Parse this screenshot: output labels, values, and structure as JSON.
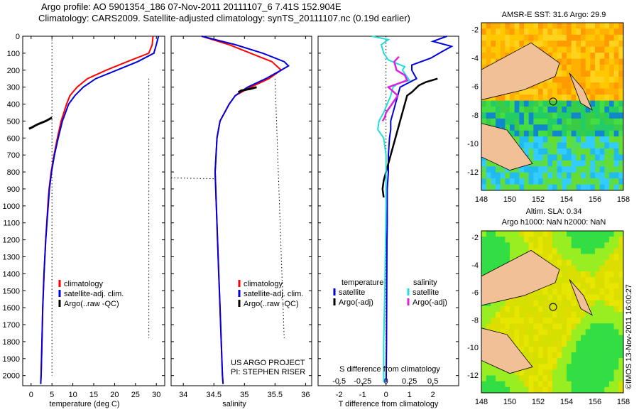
{
  "titles": {
    "line1": "Argo profile: AO 5901354_186 07-Nov-2011 20111107_6 7.41S 152.904E",
    "line2": "Climatology: CARS2009. Satellite-adjusted climatology: synTS_20111107.nc (0.19d earlier)"
  },
  "colors": {
    "climatology": "#ff0000",
    "satellite": "#0000dd",
    "argo": "#000000",
    "salinity_satellite": "#22dddd",
    "salinity_argo": "#dd22dd"
  },
  "panels": {
    "temperature": {
      "xlabel": "temperature (deg C)",
      "xticks": [
        "0",
        "5",
        "10",
        "15",
        "20",
        "25",
        "30"
      ],
      "legend": [
        "climatology",
        "satellite-adj. clim.",
        "Argo(..raw -QC)"
      ]
    },
    "salinity": {
      "xlabel": "salinity",
      "xticks": [
        "34",
        "34.5",
        "35",
        "35.5",
        "36"
      ],
      "legend": [
        "climatology",
        "satellite-adj. clim.",
        "Argo(..raw -QC)"
      ],
      "credit1": "US ARGO PROJECT",
      "credit2": "PI: STEPHEN RISER"
    },
    "difference": {
      "xlabel": "T difference from climatology",
      "xlabel_top": "S difference from climatology",
      "xticks_s": [
        "-0.5",
        "-0.25",
        "0",
        "0.25",
        "0.5"
      ],
      "xticks_t": [
        "-2",
        "-1",
        "0",
        "1",
        "2"
      ],
      "legend_t_title": "temperature",
      "legend_s_title": "salinity",
      "legend_t": [
        "satellite",
        "Argo(-adj)"
      ],
      "legend_s": [
        "satellite",
        "Argo(-adj)"
      ]
    }
  },
  "yticks": [
    "0",
    "100",
    "200",
    "300",
    "400",
    "500",
    "600",
    "700",
    "800",
    "900",
    "1000",
    "1100",
    "1200",
    "1300",
    "1400",
    "1500",
    "1600",
    "1700",
    "1800",
    "1900",
    "2000"
  ],
  "maps": {
    "sst_title": "AMSR-E SST: 31.6 Argo: 29.9",
    "sla_title1": "Altim. SLA: 0.34",
    "sla_title2": "Argo h1000: NaN h2000: NaN",
    "xticks": [
      "148",
      "150",
      "152",
      "154",
      "156",
      "158"
    ],
    "yticks": [
      "-2",
      "-4",
      "-6",
      "-8",
      "-10",
      "-12"
    ]
  },
  "stamp": "©IMOS 13-Nov-2011 16:00:27",
  "chart_data": [
    {
      "type": "line",
      "xlabel": "temperature (deg C)",
      "ylabel": "",
      "xlim": [
        -2,
        32
      ],
      "ylim": [
        2060,
        0
      ],
      "series": [
        {
          "name": "climatology",
          "depth": [
            0,
            50,
            100,
            150,
            200,
            250,
            300,
            350,
            400,
            500,
            600,
            700,
            800,
            900,
            1000,
            1200,
            1400,
            1600,
            1800,
            2000,
            2050
          ],
          "values": [
            29.2,
            29.0,
            28.2,
            23,
            18,
            13.5,
            11,
            9.3,
            8.5,
            7.2,
            6.3,
            5.5,
            4.8,
            4.3,
            4.0,
            3.5,
            3.1,
            2.8,
            2.6,
            2.4,
            2.3
          ]
        },
        {
          "name": "satellite-adj. clim.",
          "depth": [
            0,
            50,
            100,
            150,
            200,
            250,
            300,
            350,
            400,
            500,
            600,
            700,
            800,
            900,
            1000,
            1200,
            1400,
            1600,
            1800,
            2000,
            2050
          ],
          "values": [
            30.5,
            30.0,
            29.4,
            25.5,
            20.5,
            15.5,
            12.5,
            10.5,
            9.0,
            7.5,
            6.5,
            5.6,
            4.9,
            4.4,
            4.1,
            3.5,
            3.1,
            2.8,
            2.6,
            2.4,
            2.3
          ]
        },
        {
          "name": "Argo(..raw -QC)",
          "depth": [
            480,
            500,
            520,
            540,
            545
          ],
          "values": [
            5.0,
            3.5,
            1.5,
            0.0,
            -0.5
          ]
        }
      ]
    },
    {
      "type": "line",
      "xlabel": "salinity",
      "ylabel": "",
      "xlim": [
        33.8,
        36.1
      ],
      "ylim": [
        2060,
        0
      ],
      "series": [
        {
          "name": "climatology",
          "depth": [
            0,
            50,
            100,
            150,
            200,
            250,
            300,
            350,
            400,
            500,
            600,
            800,
            1000,
            1200,
            1400,
            1600,
            1800,
            2000,
            2050
          ],
          "values": [
            34.3,
            34.75,
            35.1,
            35.45,
            35.6,
            35.4,
            35.1,
            34.85,
            34.75,
            34.6,
            34.55,
            34.52,
            34.54,
            34.56,
            34.58,
            34.6,
            34.62,
            34.64,
            34.65
          ]
        },
        {
          "name": "satellite-adj. clim.",
          "depth": [
            0,
            50,
            100,
            150,
            175,
            200,
            250,
            300,
            350,
            400,
            500,
            600,
            800,
            1000,
            1200,
            1400,
            1600,
            1800,
            2000,
            2050
          ],
          "values": [
            34.3,
            34.85,
            35.3,
            35.65,
            35.72,
            35.6,
            35.35,
            35.05,
            34.85,
            34.75,
            34.6,
            34.55,
            34.52,
            34.54,
            34.56,
            34.58,
            34.6,
            34.62,
            34.64,
            34.65
          ]
        },
        {
          "name": "Argo(..raw -QC)",
          "depth": [
            300,
            310,
            320,
            330
          ],
          "values": [
            35.2,
            35.1,
            34.95,
            34.9
          ]
        }
      ]
    },
    {
      "type": "line",
      "xlabel": "T difference from climatology",
      "ylabel": "",
      "xlim": [
        -2.9,
        3.1
      ],
      "ylim": [
        2060,
        0
      ],
      "series": [
        {
          "name": "satellite",
          "depth": [
            0,
            30,
            60,
            90,
            130,
            170,
            200,
            250,
            300,
            350,
            400,
            450,
            500,
            550,
            600,
            700,
            800,
            900,
            1000,
            1100,
            1200,
            1500,
            1800,
            2000,
            2040
          ],
          "values": [
            2.6,
            2.0,
            2.8,
            2.4,
            1.9,
            1.1,
            1.1,
            1.3,
            0.6,
            0.5,
            0.4,
            0.3,
            0.2,
            0.2,
            0.15,
            0.1,
            0.1,
            0.05,
            0.05,
            0.05,
            0.04,
            0.03,
            0.02,
            0.01,
            0
          ]
        },
        {
          "name": "Argo(-adj)",
          "depth": [
            250,
            270,
            290,
            330,
            350,
            850,
            900,
            950
          ],
          "values": [
            2.2,
            1.7,
            1.4,
            1.1,
            0.9,
            -0.1,
            -0.15,
            -0.1
          ]
        },
        {
          "name": "satellite",
          "depth": [
            0,
            20,
            50,
            100,
            140,
            180,
            200,
            240,
            260,
            280,
            300,
            350,
            400,
            450,
            500,
            550,
            600,
            700,
            800,
            1000,
            1200,
            1500,
            1800,
            2000,
            2040
          ],
          "values": [
            -0.6,
            0.1,
            -0.2,
            -0.1,
            0.1,
            0.8,
            0.7,
            0.9,
            1.0,
            0.5,
            0.3,
            0.2,
            0.05,
            -0.1,
            -0.3,
            -0.35,
            -0.1,
            0.0,
            0.0,
            0.0,
            -0.02,
            -0.05,
            -0.1,
            -0.1,
            -0.1
          ]
        },
        {
          "name": "Argo(-adj)",
          "depth": [
            120,
            150,
            200,
            230,
            260,
            300,
            350,
            400,
            450,
            480,
            500
          ],
          "values": [
            0.55,
            0.35,
            0.45,
            0.8,
            0.9,
            0.1,
            0.5,
            0.25,
            0.0,
            -0.05,
            -0.15
          ]
        }
      ]
    }
  ]
}
